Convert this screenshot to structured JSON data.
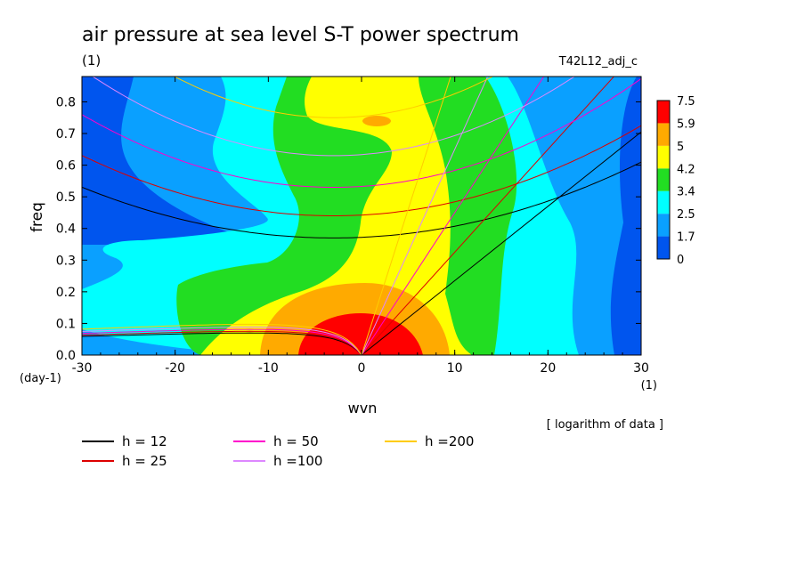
{
  "chart_data": {
    "type": "heatmap",
    "title": "air pressure at sea level S-T power spectrum",
    "subtitle_left": "(1)",
    "subtitle_right": "T42L12_adj_c",
    "xlabel": "wvn",
    "ylabel": "freq",
    "x_unit": "(1)",
    "y_unit": "(day-1)",
    "xlim": [
      -30,
      30
    ],
    "ylim": [
      0,
      0.88
    ],
    "x_ticks": [
      -30,
      -20,
      -10,
      0,
      10,
      20,
      30
    ],
    "x_tick_labels": [
      "-30",
      "-20",
      "-10",
      "0",
      "10",
      "20",
      "30"
    ],
    "y_ticks": [
      0,
      0.1,
      0.2,
      0.3,
      0.4,
      0.5,
      0.6,
      0.7,
      0.8
    ],
    "y_tick_labels": [
      "0.0",
      "0.1",
      "0.2",
      "0.3",
      "0.4",
      "0.5",
      "0.6",
      "0.7",
      "0.8"
    ],
    "note": "[ logarithm of data ]",
    "colorbar": {
      "labels": [
        "0",
        "1.7",
        "2.5",
        "3.4",
        "4.2",
        "5",
        "5.9",
        "7.5"
      ],
      "colors": [
        "#0055ee",
        "#0aa0ff",
        "#00ffff",
        "#22dd22",
        "#ffff00",
        "#ffaa00",
        "#ff0000"
      ]
    },
    "legend": [
      {
        "label": "h = 12",
        "color": "#000000"
      },
      {
        "label": "h = 25",
        "color": "#dd0000"
      },
      {
        "label": "h = 50",
        "color": "#ff00cc"
      },
      {
        "label": "h =100",
        "color": "#dd88ff"
      },
      {
        "label": "h =200",
        "color": "#ffcc00"
      }
    ],
    "dispersion_curves": [
      {
        "label": "h = 12",
        "color": "#000000",
        "rossby_min_freq": 0.37,
        "kelvin_slope": 0.0235
      },
      {
        "label": "h = 25",
        "color": "#dd0000",
        "rossby_min_freq": 0.44,
        "kelvin_slope": 0.0325
      },
      {
        "label": "h = 50",
        "color": "#ff00cc",
        "rossby_min_freq": 0.53,
        "kelvin_slope": 0.045
      },
      {
        "label": "h =100",
        "color": "#dd88ff",
        "rossby_min_freq": 0.63,
        "kelvin_slope": 0.065
      },
      {
        "label": "h =200",
        "color": "#ffcc00",
        "rossby_min_freq": 0.75,
        "kelvin_slope": 0.092
      }
    ]
  }
}
